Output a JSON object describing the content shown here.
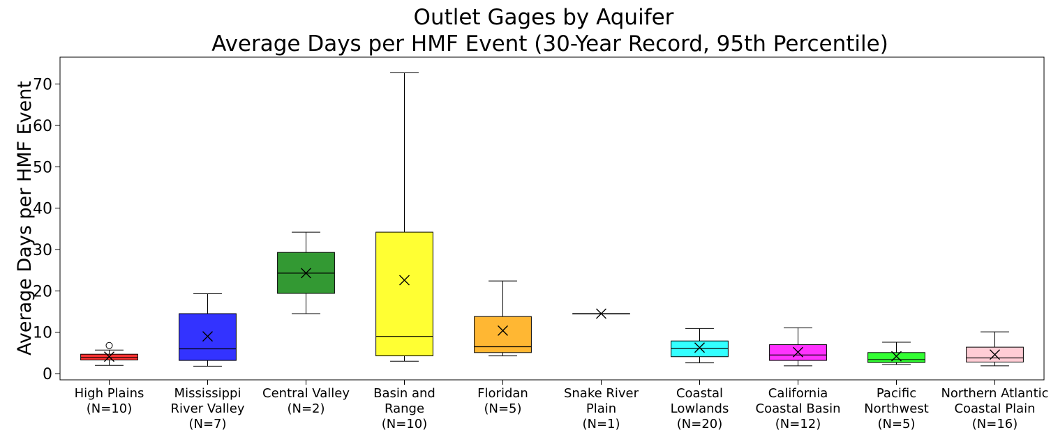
{
  "chart_data": {
    "type": "box",
    "title": [
      "Outlet Gages by Aquifer",
      "Average Days per HMF Event (30-Year Record, 95th Percentile)"
    ],
    "xlabel": "",
    "ylabel": "Average Days per HMF Event",
    "ylim": [
      -1.5,
      76.5
    ],
    "yticks": [
      0,
      10,
      20,
      30,
      40,
      50,
      60,
      70
    ],
    "grid": false,
    "legend": "none",
    "mean_marker": "x",
    "categories": [
      {
        "label": [
          "High Plains",
          "(N=10)"
        ],
        "color": "#ff0000",
        "min": 2.0,
        "q1": 3.3,
        "median": 3.9,
        "q3": 4.7,
        "max": 5.7,
        "mean": 4.1,
        "outliers": [
          6.8
        ]
      },
      {
        "label": [
          "Mississippi",
          "River Valley",
          "(N=7)"
        ],
        "color": "#0000ff",
        "min": 1.8,
        "q1": 3.2,
        "median": 6.0,
        "q3": 14.5,
        "max": 19.3,
        "mean": 9.0,
        "outliers": []
      },
      {
        "label": [
          "Central Valley",
          "(N=2)"
        ],
        "color": "#008000",
        "min": 14.5,
        "q1": 19.4,
        "median": 24.3,
        "q3": 29.3,
        "max": 34.2,
        "mean": 24.3,
        "outliers": []
      },
      {
        "label": [
          "Basin and",
          "Range",
          "(N=10)"
        ],
        "color": "#ffff00",
        "min": 3.0,
        "q1": 4.3,
        "median": 9.0,
        "q3": 34.2,
        "max": 72.7,
        "mean": 22.6,
        "outliers": []
      },
      {
        "label": [
          "Floridan",
          "(N=5)"
        ],
        "color": "#ffa500",
        "min": 4.3,
        "q1": 5.1,
        "median": 6.5,
        "q3": 13.8,
        "max": 22.4,
        "mean": 10.4,
        "outliers": []
      },
      {
        "label": [
          "Snake River",
          "Plain",
          "(N=1)"
        ],
        "color": "#000000",
        "min": 14.5,
        "q1": 14.5,
        "median": 14.5,
        "q3": 14.5,
        "max": 14.5,
        "mean": 14.5,
        "outliers": []
      },
      {
        "label": [
          "Coastal",
          "Lowlands",
          "(N=20)"
        ],
        "color": "#00ffff",
        "min": 2.6,
        "q1": 4.1,
        "median": 6.1,
        "q3": 7.9,
        "max": 10.9,
        "mean": 6.3,
        "outliers": []
      },
      {
        "label": [
          "California",
          "Coastal Basin",
          "(N=12)"
        ],
        "color": "#ff00ff",
        "min": 1.9,
        "q1": 3.2,
        "median": 4.5,
        "q3": 7.0,
        "max": 11.1,
        "mean": 5.2,
        "outliers": []
      },
      {
        "label": [
          "Pacific",
          "Northwest",
          "(N=5)"
        ],
        "color": "#00ff00",
        "min": 2.2,
        "q1": 2.7,
        "median": 3.4,
        "q3": 5.1,
        "max": 7.6,
        "mean": 4.2,
        "outliers": []
      },
      {
        "label": [
          "Northern Atlantic",
          "Coastal Plain",
          "(N=16)"
        ],
        "color": "#ffc0cb",
        "min": 1.9,
        "q1": 2.8,
        "median": 3.8,
        "q3": 6.4,
        "max": 10.1,
        "mean": 4.6,
        "outliers": []
      }
    ]
  }
}
